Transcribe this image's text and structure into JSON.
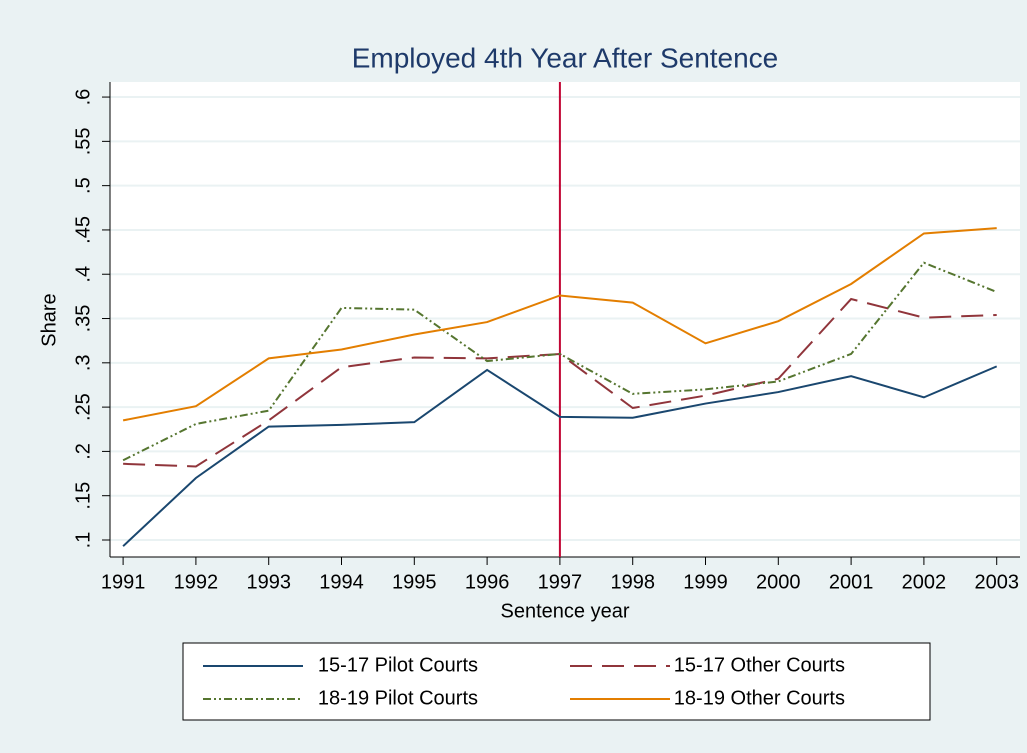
{
  "chart_data": {
    "type": "line",
    "title": "Employed 4th Year After Sentence",
    "x_label": "Sentence year",
    "y_label": "Share",
    "x": [
      1991,
      1992,
      1993,
      1994,
      1995,
      1996,
      1997,
      1998,
      1999,
      2000,
      2001,
      2002,
      2003
    ],
    "series": [
      {
        "name": "15-17 Pilot Courts",
        "color": "#1a476f",
        "style": "solid",
        "values": [
          0.093,
          0.17,
          0.228,
          0.23,
          0.233,
          0.292,
          0.239,
          0.238,
          0.254,
          0.267,
          0.285,
          0.261,
          0.296
        ]
      },
      {
        "name": "15-17 Other Courts",
        "color": "#90353b",
        "style": "dash",
        "values": [
          0.186,
          0.183,
          0.235,
          0.295,
          0.306,
          0.305,
          0.31,
          0.249,
          0.263,
          0.282,
          0.372,
          0.351,
          0.354
        ]
      },
      {
        "name": "18-19 Pilot Courts",
        "color": "#55752f",
        "style": "dashdot",
        "values": [
          0.19,
          0.231,
          0.246,
          0.362,
          0.36,
          0.302,
          0.31,
          0.265,
          0.27,
          0.279,
          0.31,
          0.413,
          0.38
        ]
      },
      {
        "name": "18-19 Other Courts",
        "color": "#e37e00",
        "style": "solid",
        "values": [
          0.235,
          0.251,
          0.305,
          0.315,
          0.332,
          0.346,
          0.376,
          0.368,
          0.322,
          0.347,
          0.389,
          0.446,
          0.452
        ]
      }
    ],
    "xlim": [
      1990.82,
      2003.32
    ],
    "xticks": [
      1991,
      1992,
      1993,
      1994,
      1995,
      1996,
      1997,
      1998,
      1999,
      2000,
      2001,
      2002,
      2003
    ],
    "ylim": [
      0.0808,
      0.617
    ],
    "yticks": [
      {
        "value": 0.1,
        "label": ".1"
      },
      {
        "value": 0.15,
        "label": ".15"
      },
      {
        "value": 0.2,
        "label": ".2"
      },
      {
        "value": 0.25,
        "label": ".25"
      },
      {
        "value": 0.3,
        "label": ".3"
      },
      {
        "value": 0.35,
        "label": ".35"
      },
      {
        "value": 0.4,
        "label": ".4"
      },
      {
        "value": 0.45,
        "label": ".45"
      },
      {
        "value": 0.5,
        "label": ".5"
      },
      {
        "value": 0.55,
        "label": ".55"
      },
      {
        "value": 0.6,
        "label": ".6"
      }
    ],
    "grid": true,
    "xline": {
      "value": 1997,
      "color": "#c10534"
    },
    "legend": "bottom"
  }
}
